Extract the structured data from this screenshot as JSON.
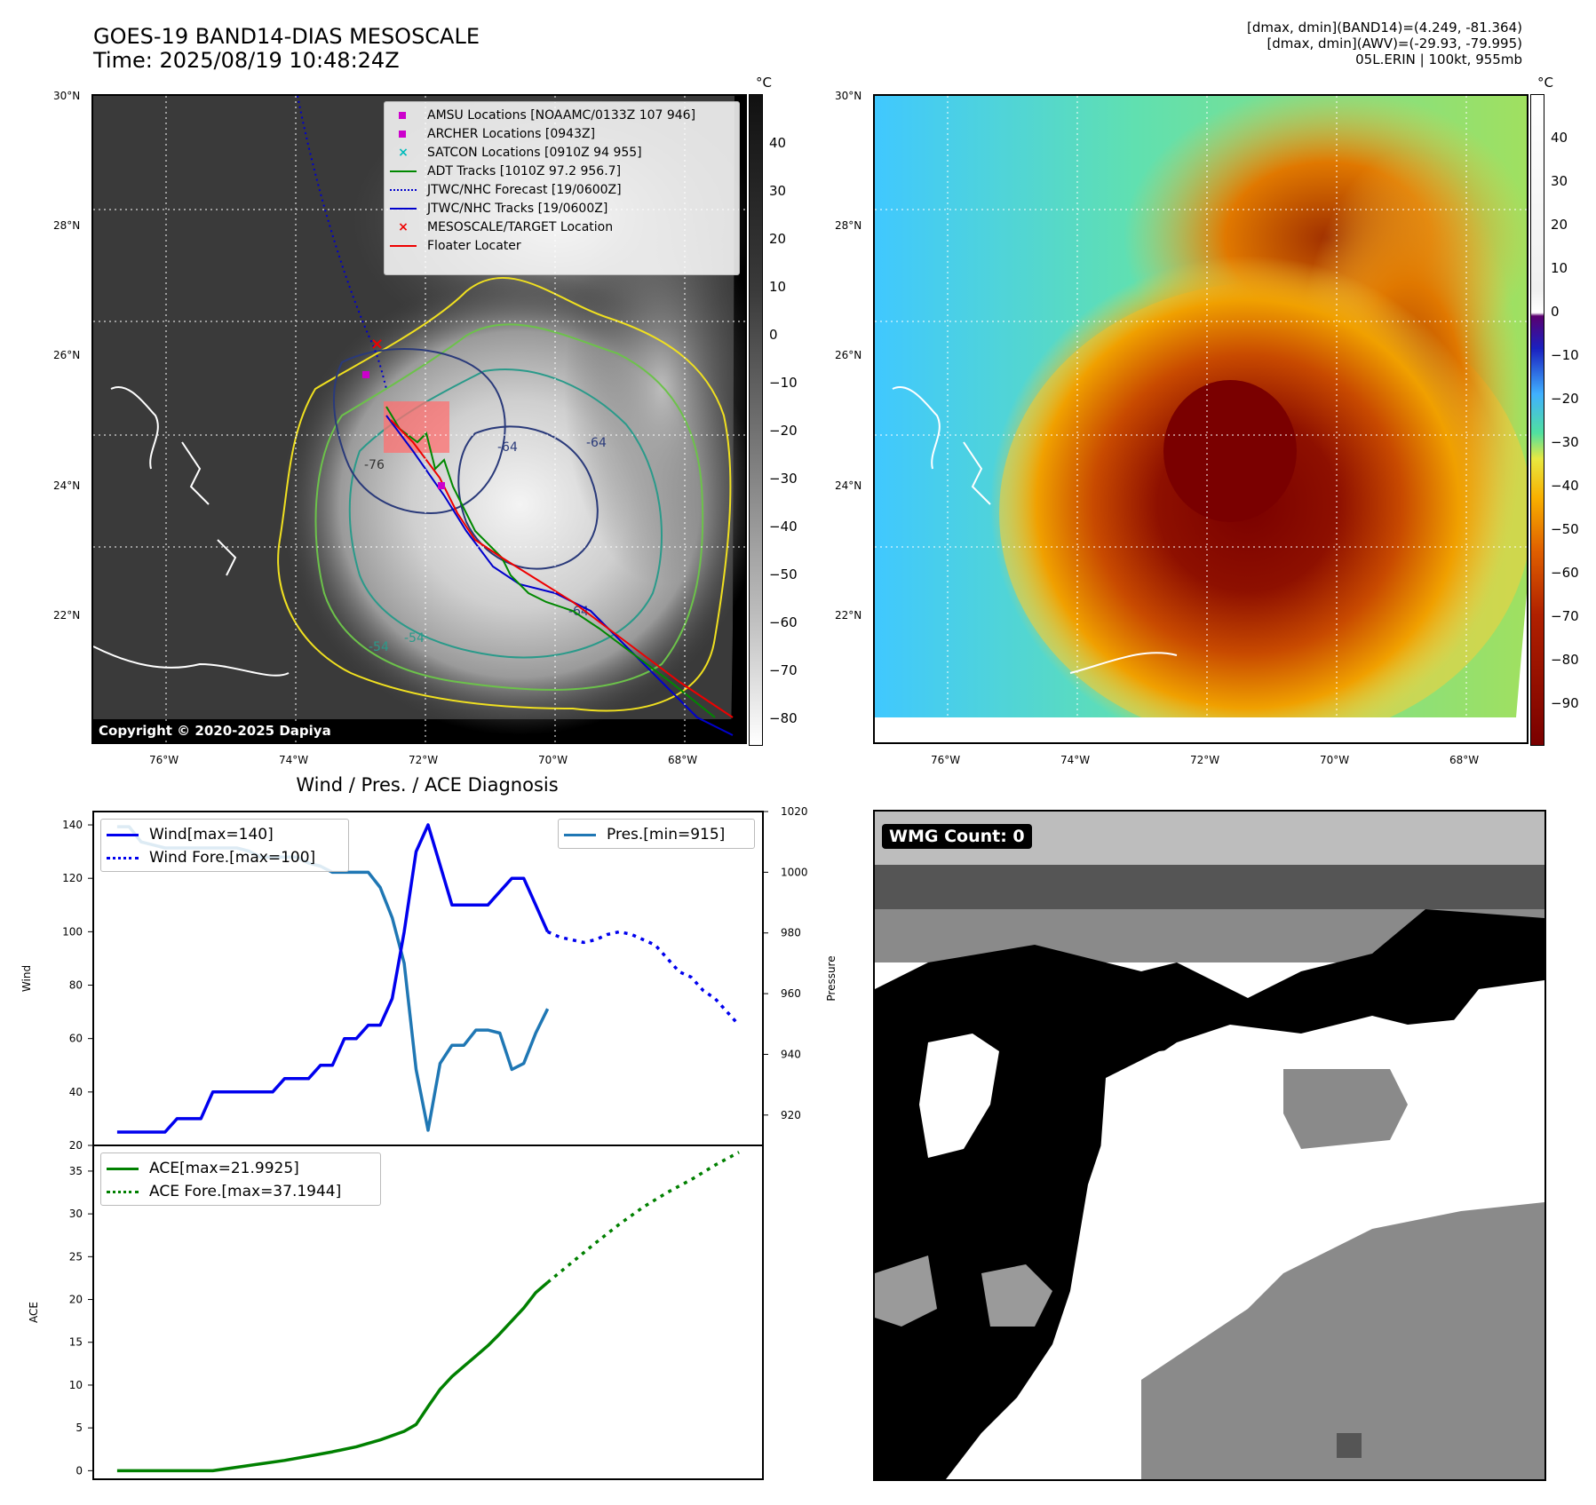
{
  "header": {
    "title_line1": "GOES-19 BAND14-DIAS MESOSCALE",
    "title_line2": "Time: 2025/08/19 10:48:24Z",
    "info_line1": "[dmax, dmin](BAND14)=(4.249, -81.364)",
    "info_line2": "[dmax, dmin](AWV)=(-29.93, -79.995)",
    "info_line3": "05L.ERIN | 100kt, 955mb"
  },
  "map": {
    "lat_ticks": [
      "30°N",
      "28°N",
      "26°N",
      "24°N",
      "22°N"
    ],
    "lon_ticks": [
      "76°W",
      "74°W",
      "72°W",
      "70°W",
      "68°W"
    ],
    "copyright": "Copyright © 2020-2025 Dapiya",
    "contour_labels": [
      "-76",
      "-64",
      "-64",
      "-54",
      "-54",
      "-64"
    ]
  },
  "legend_map": {
    "items": [
      {
        "label": "AMSU Locations [NOAAMC/0133Z 107 946]",
        "color": "#cc00cc",
        "style": "square"
      },
      {
        "label": "ARCHER Locations [0943Z]",
        "color": "#cc00cc",
        "style": "square"
      },
      {
        "label": "SATCON Locations [0910Z 94 955]",
        "color": "#00bbbb",
        "style": "x"
      },
      {
        "label": "ADT Tracks [1010Z 97.2 956.7]",
        "color": "#008800",
        "style": "line"
      },
      {
        "label": "JTWC/NHC Forecast [19/0600Z]",
        "color": "#0000cc",
        "style": "dotted"
      },
      {
        "label": "JTWC/NHC Tracks [19/0600Z]",
        "color": "#0000cc",
        "style": "line-dot"
      },
      {
        "label": "MESOSCALE/TARGET Location",
        "color": "#ee0000",
        "style": "x"
      },
      {
        "label": "Floater Locater",
        "color": "#ee0000",
        "style": "line"
      }
    ]
  },
  "colorbar_gray": {
    "unit": "°C",
    "ticks": [
      "40",
      "30",
      "20",
      "10",
      "0",
      "−10",
      "−20",
      "−30",
      "−40",
      "−50",
      "−60",
      "−70",
      "−80"
    ]
  },
  "colorbar_awv": {
    "unit": "°C",
    "ticks": [
      "40",
      "30",
      "20",
      "10",
      "0",
      "−10",
      "−20",
      "−30",
      "−40",
      "−50",
      "−60",
      "−70",
      "−80",
      "−90"
    ]
  },
  "wind_panel": {
    "title": "Wind / Pres. / ACE Diagnosis",
    "legend_left": [
      "Wind[max=140]",
      "Wind Fore.[max=100]"
    ],
    "legend_right": [
      "Pres.[min=915]"
    ],
    "legend_ace": [
      "ACE[max=21.9925]",
      "ACE Fore.[max=37.1944]"
    ],
    "wmg": "WMG Count: 0"
  },
  "chart_data": [
    {
      "type": "line",
      "title": "Wind / Pres. / ACE Diagnosis",
      "ylabel": "Wind",
      "ylim": [
        20,
        145
      ],
      "yticks": [
        20,
        40,
        60,
        80,
        100,
        120,
        140
      ],
      "series": [
        {
          "name": "Wind[max=140]",
          "color": "#0000ee",
          "style": "solid",
          "x": [
            0,
            1,
            2,
            3,
            4,
            5,
            6,
            7,
            8,
            9,
            10,
            11,
            12,
            13,
            14,
            15,
            16,
            17,
            18,
            19,
            20,
            21,
            22,
            23,
            24,
            25,
            26,
            27,
            28,
            29,
            30,
            31,
            32,
            33,
            34,
            35,
            36
          ],
          "values": [
            25,
            25,
            25,
            25,
            25,
            30,
            30,
            30,
            40,
            40,
            40,
            40,
            40,
            40,
            45,
            45,
            45,
            50,
            50,
            60,
            60,
            65,
            65,
            75,
            100,
            130,
            140,
            125,
            110,
            110,
            110,
            110,
            115,
            120,
            120,
            110,
            100
          ]
        },
        {
          "name": "Wind Fore.[max=100]",
          "color": "#0000ee",
          "style": "dotted",
          "x": [
            36,
            37,
            38,
            39,
            40,
            41,
            42,
            43,
            44,
            45,
            46,
            47,
            48,
            49,
            50,
            51,
            52
          ],
          "values": [
            100,
            98,
            97,
            96,
            97,
            99,
            100,
            99,
            97,
            95,
            90,
            85,
            83,
            78,
            75,
            70,
            65
          ]
        }
      ]
    },
    {
      "type": "line",
      "ylabel": "Pressure",
      "ylim": [
        910,
        1020
      ],
      "yticks": [
        920,
        940,
        960,
        980,
        1000,
        1020
      ],
      "series": [
        {
          "name": "Pres.[min=915]",
          "color": "#1f77b4",
          "style": "solid",
          "x": [
            0,
            1,
            2,
            3,
            4,
            5,
            6,
            7,
            8,
            9,
            10,
            11,
            12,
            13,
            14,
            15,
            16,
            17,
            18,
            19,
            20,
            21,
            22,
            23,
            24,
            25,
            26,
            27,
            28,
            29,
            30,
            31,
            32,
            33,
            34,
            35,
            36
          ],
          "values": [
            1015,
            1015,
            1010,
            1009,
            1008,
            1008,
            1008,
            1008,
            1008,
            1008,
            1008,
            1007,
            1005,
            1005,
            1005,
            1005,
            1003,
            1002,
            1000,
            1000,
            1000,
            1000,
            995,
            985,
            970,
            935,
            915,
            937,
            943,
            943,
            948,
            948,
            947,
            935,
            937,
            947,
            955
          ]
        }
      ]
    },
    {
      "type": "line",
      "ylabel": "ACE",
      "ylim": [
        -1,
        38
      ],
      "yticks": [
        0,
        5,
        10,
        15,
        20,
        25,
        30,
        35
      ],
      "series": [
        {
          "name": "ACE[max=21.9925]",
          "color": "#008000",
          "style": "solid",
          "x": [
            0,
            2,
            4,
            6,
            8,
            10,
            12,
            14,
            16,
            18,
            20,
            22,
            24,
            25,
            26,
            27,
            28,
            29,
            30,
            31,
            32,
            33,
            34,
            35,
            36
          ],
          "values": [
            0,
            0,
            0,
            0,
            0,
            0.4,
            0.8,
            1.2,
            1.7,
            2.2,
            2.8,
            3.6,
            4.6,
            5.4,
            7.5,
            9.5,
            11,
            12.2,
            13.4,
            14.6,
            16,
            17.5,
            19,
            20.8,
            22
          ]
        },
        {
          "name": "ACE Fore.[max=37.1944]",
          "color": "#008000",
          "style": "dotted",
          "x": [
            36,
            38,
            40,
            42,
            44,
            46,
            48,
            50,
            52
          ],
          "values": [
            22,
            24.3,
            26.6,
            28.8,
            30.8,
            32.5,
            34,
            35.7,
            37.2
          ]
        }
      ]
    }
  ]
}
